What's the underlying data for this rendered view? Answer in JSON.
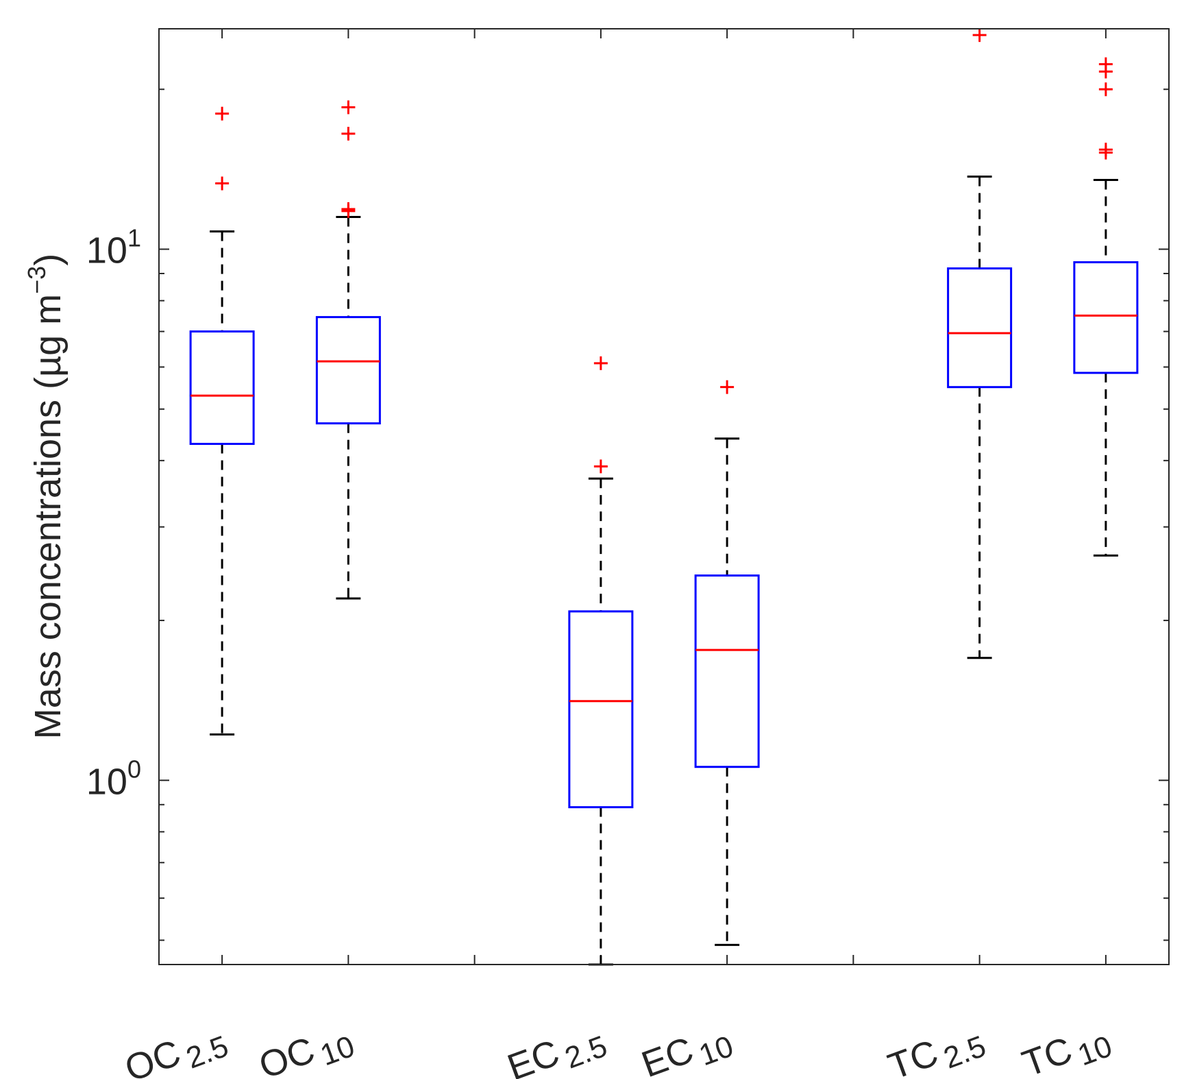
{
  "chart_data": {
    "type": "box",
    "ylabel": "Mass concentrations (µg m",
    "ylabel_sup": "−3",
    "ylabel_close": ")",
    "yscale": "log",
    "ylim": [
      0.45,
      26
    ],
    "yticks": [
      {
        "value": 1,
        "base": "10",
        "exp": "0"
      },
      {
        "value": 10,
        "base": "10",
        "exp": "1"
      }
    ],
    "colors": {
      "box": "#0000ff",
      "median": "#ff0000",
      "whisker": "#000000",
      "outlier": "#ff0000",
      "axis": "#262626"
    },
    "categories": [
      {
        "base": "OC",
        "sub": "2.5",
        "position": 1
      },
      {
        "base": "OC",
        "sub": "10",
        "position": 2
      },
      {
        "base": "EC",
        "sub": "2.5",
        "position": 4
      },
      {
        "base": "EC",
        "sub": "10",
        "position": 5
      },
      {
        "base": "TC",
        "sub": "2.5",
        "position": 7
      },
      {
        "base": "TC",
        "sub": "10",
        "position": 8
      }
    ],
    "xticks": [
      1,
      2,
      3,
      4,
      5,
      6,
      7,
      8
    ],
    "xlim": [
      0.5,
      8.5
    ],
    "boxes": [
      {
        "name": "OC2.5",
        "whisker_low": 1.22,
        "q1": 4.3,
        "median": 5.3,
        "q3": 7.0,
        "whisker_high": 10.8,
        "outliers": [
          13.3,
          18.0
        ]
      },
      {
        "name": "OC10",
        "whisker_low": 2.2,
        "q1": 4.7,
        "median": 6.15,
        "q3": 7.45,
        "whisker_high": 11.5,
        "outliers": [
          11.8,
          11.9,
          16.5,
          18.5
        ]
      },
      {
        "name": "EC2.5",
        "whisker_low": 0.45,
        "q1": 0.89,
        "median": 1.41,
        "q3": 2.08,
        "whisker_high": 3.7,
        "outliers": [
          3.9,
          6.1
        ]
      },
      {
        "name": "EC10",
        "whisker_low": 0.49,
        "q1": 1.06,
        "median": 1.76,
        "q3": 2.43,
        "whisker_high": 4.4,
        "outliers": [
          5.5
        ]
      },
      {
        "name": "TC2.5",
        "whisker_low": 1.7,
        "q1": 5.5,
        "median": 6.95,
        "q3": 9.2,
        "whisker_high": 13.7,
        "outliers": [
          25.3
        ]
      },
      {
        "name": "TC10",
        "whisker_low": 2.65,
        "q1": 5.85,
        "median": 7.5,
        "q3": 9.45,
        "whisker_high": 13.5,
        "outliers": [
          15.2,
          15.4,
          20.0,
          21.6,
          22.3
        ]
      }
    ]
  }
}
